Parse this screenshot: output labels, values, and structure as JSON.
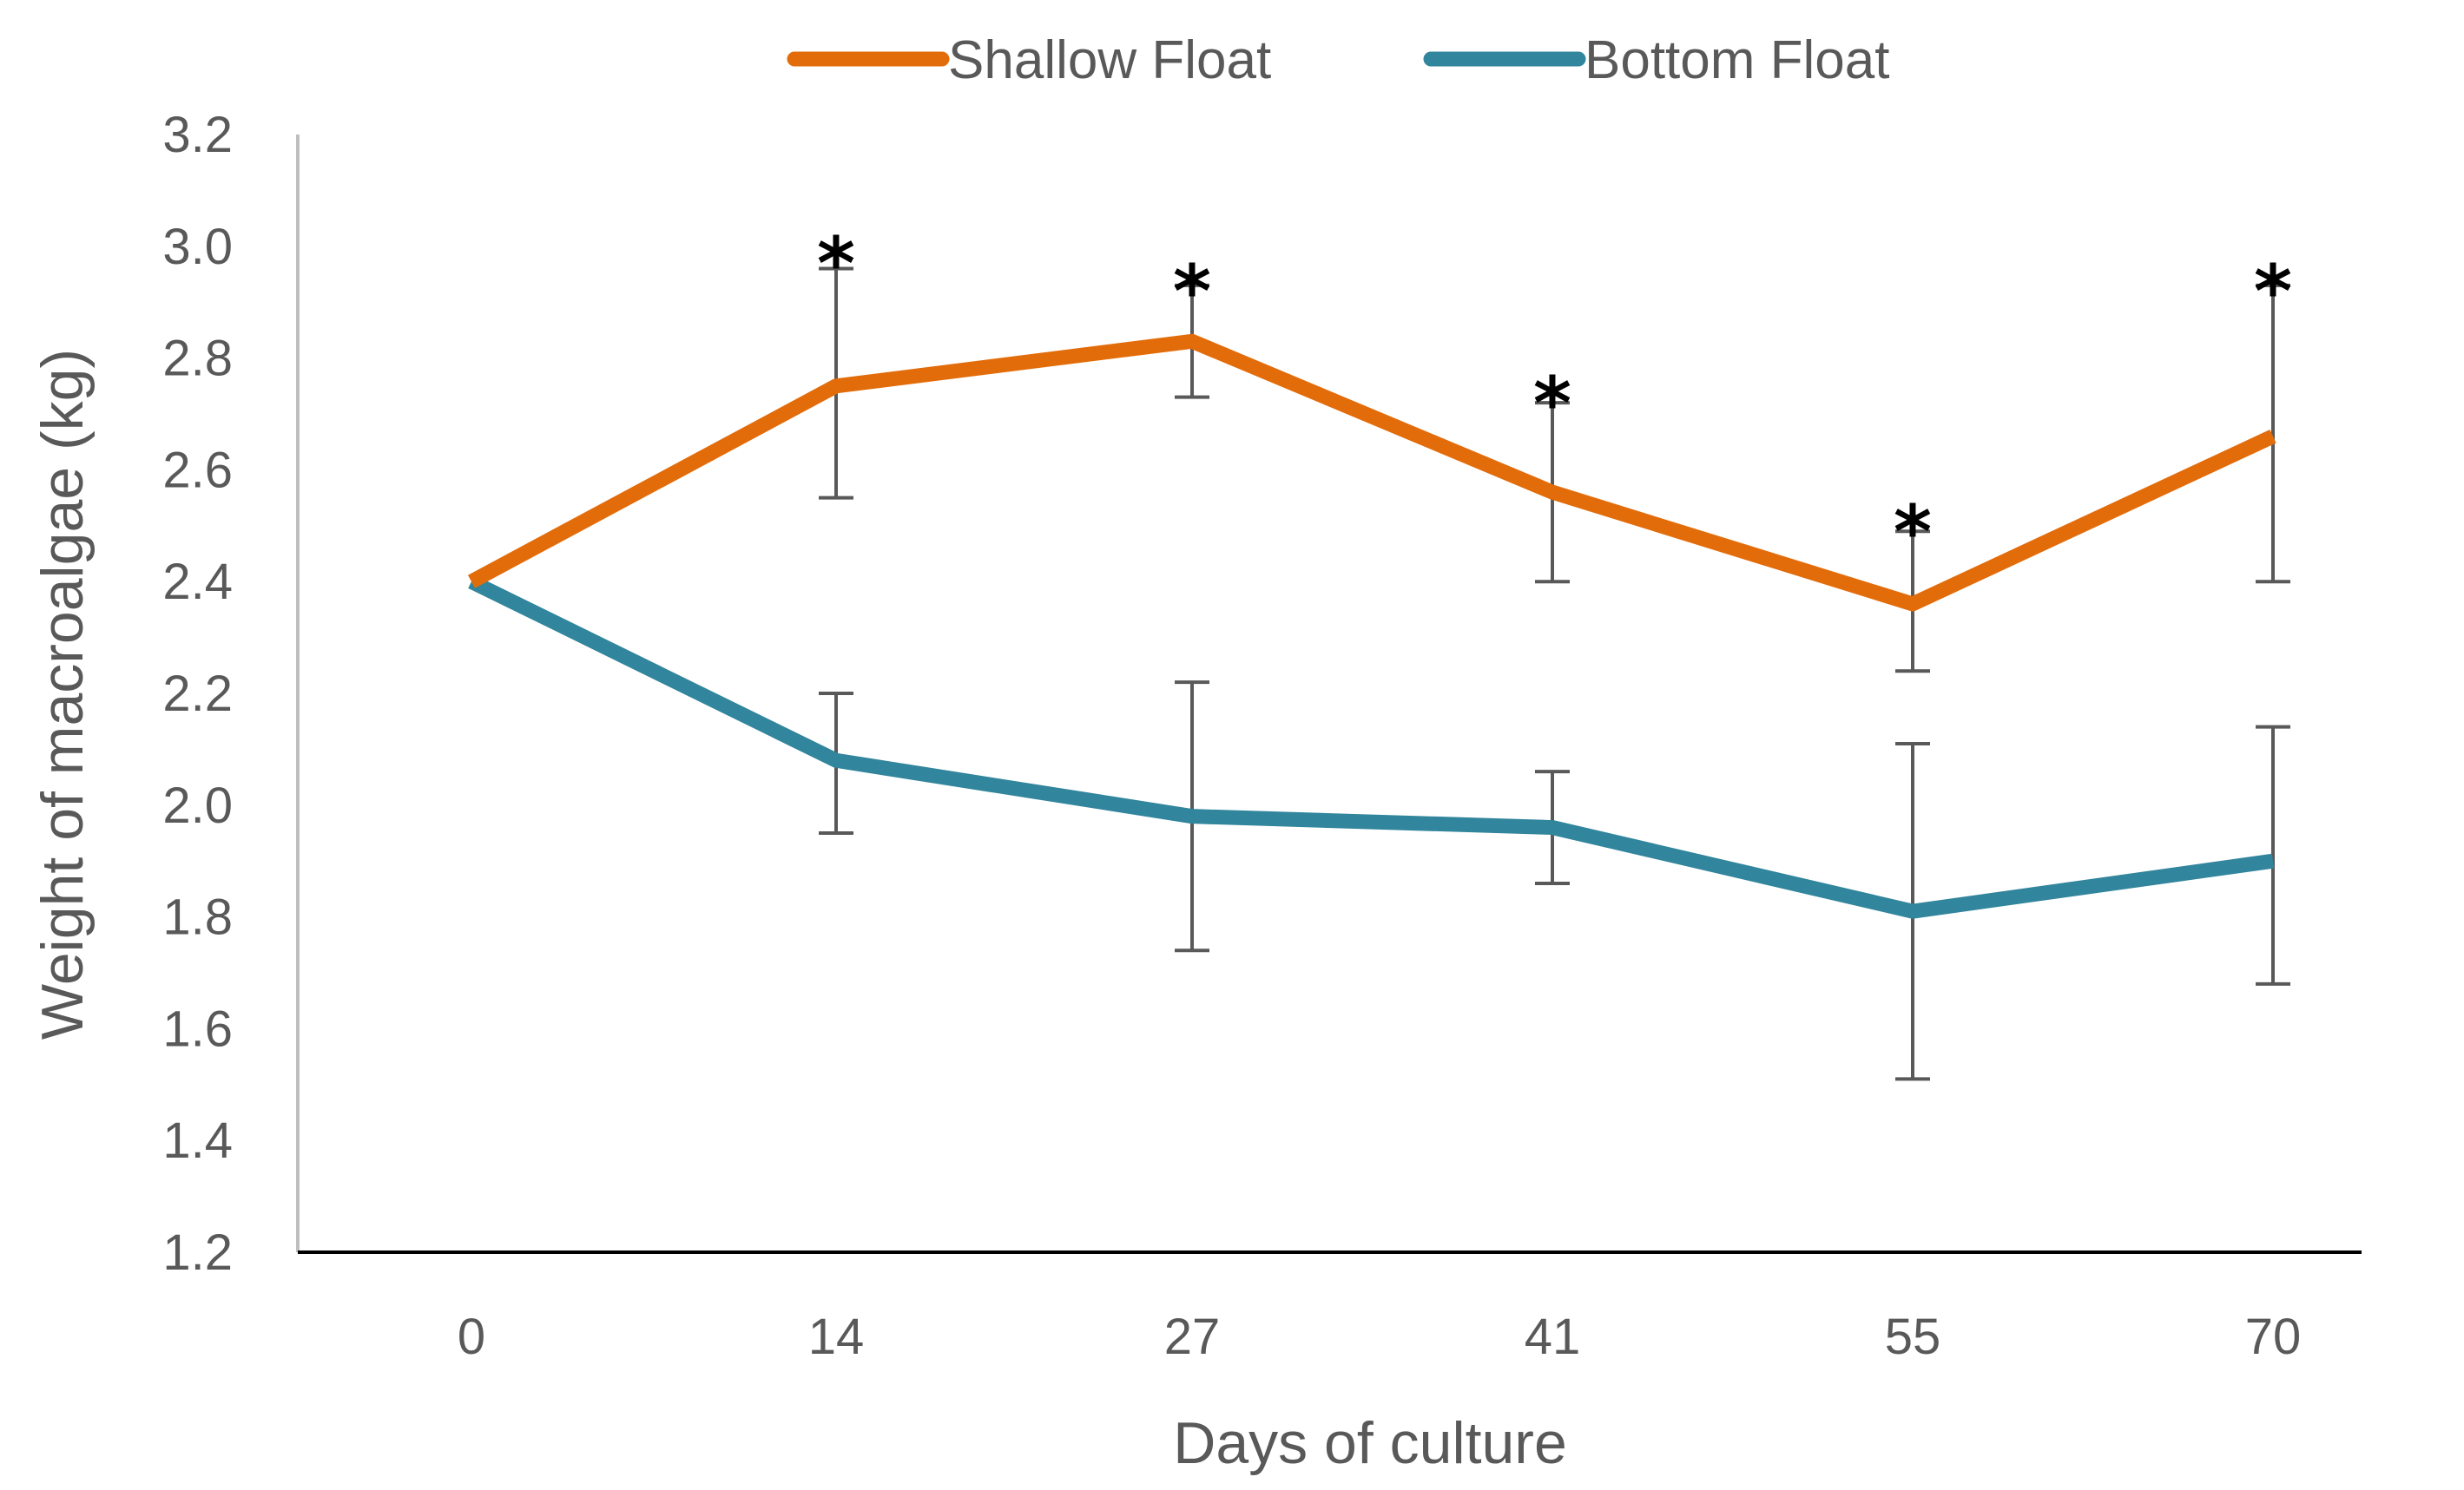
{
  "chart_data": {
    "type": "line",
    "title": "",
    "xlabel": "Days of culture",
    "ylabel": "Weight of macroalgae (kg)",
    "categories": [
      "0",
      "14",
      "27",
      "41",
      "55",
      "70"
    ],
    "ylim": [
      1.2,
      3.2
    ],
    "yticks": [
      "1.2",
      "1.4",
      "1.6",
      "1.8",
      "2.0",
      "2.2",
      "2.4",
      "2.6",
      "2.8",
      "3.0",
      "3.2"
    ],
    "grid": false,
    "legend_position": "top",
    "series": [
      {
        "name": "Shallow Float",
        "color": "#E36C0A",
        "values": [
          2.4,
          2.75,
          2.83,
          2.56,
          2.36,
          2.66
        ],
        "error_low": [
          null,
          2.55,
          2.73,
          2.4,
          2.24,
          2.4
        ],
        "error_high": [
          null,
          2.96,
          2.93,
          2.72,
          2.49,
          2.93
        ]
      },
      {
        "name": "Bottom Float",
        "color": "#31859C",
        "values": [
          2.4,
          2.08,
          1.98,
          1.96,
          1.81,
          1.9
        ],
        "error_low": [
          null,
          1.95,
          1.74,
          1.86,
          1.51,
          1.68
        ],
        "error_high": [
          null,
          2.2,
          2.22,
          2.06,
          2.11,
          2.14
        ]
      }
    ],
    "annotations": [
      {
        "category": "14",
        "text": "*",
        "y": 3.02
      },
      {
        "category": "27",
        "text": "*",
        "y": 2.97
      },
      {
        "category": "41",
        "text": "*",
        "y": 2.77
      },
      {
        "category": "55",
        "text": "*",
        "y": 2.54
      },
      {
        "category": "70",
        "text": "*",
        "y": 2.97
      }
    ],
    "error_bar_color": "#595959",
    "axis_color": "#000000"
  }
}
